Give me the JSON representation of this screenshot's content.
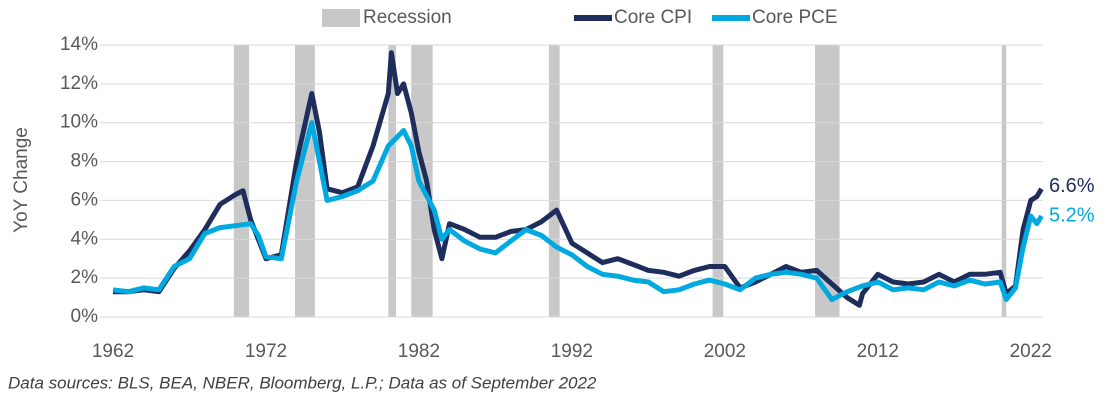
{
  "chart_data": {
    "type": "line",
    "y_label": "YoY Change",
    "footnote": "Data sources: BLS, BEA, NBER, Bloomberg, L.P.; Data as of September 2022",
    "xlim": [
      1962,
      2022.8
    ],
    "xticks": [
      1962,
      1972,
      1982,
      1992,
      2002,
      2012,
      2022
    ],
    "ylim": [
      0,
      14
    ],
    "yticks": [
      {
        "value": 0,
        "label": "0%"
      },
      {
        "value": 2,
        "label": "2%"
      },
      {
        "value": 4,
        "label": "4%"
      },
      {
        "value": 6,
        "label": "6%"
      },
      {
        "value": 8,
        "label": "8%"
      },
      {
        "value": 10,
        "label": "10%"
      },
      {
        "value": 12,
        "label": "12%"
      },
      {
        "value": 14,
        "label": "14%"
      }
    ],
    "grid": true,
    "recessions": {
      "name": "Recession",
      "color": "#c8c8c8",
      "periods": [
        [
          1969.9,
          1970.9
        ],
        [
          1973.9,
          1975.2
        ],
        [
          1980.0,
          1980.5
        ],
        [
          1981.5,
          1982.9
        ],
        [
          1990.5,
          1991.2
        ],
        [
          2001.2,
          2001.9
        ],
        [
          2007.9,
          2009.5
        ],
        [
          2020.1,
          2020.4
        ]
      ]
    },
    "series": [
      {
        "name": "Core CPI",
        "color": "#1f2d5c",
        "end_label": "6.6%",
        "x": [
          1962,
          1963,
          1964,
          1965,
          1966,
          1967,
          1968,
          1969,
          1970,
          1970.5,
          1971,
          1972,
          1973,
          1974,
          1975,
          1975.5,
          1976,
          1977,
          1978,
          1979,
          1980,
          1980.2,
          1980.6,
          1981,
          1981.5,
          1982,
          1982.5,
          1983,
          1983.5,
          1984,
          1985,
          1986,
          1987,
          1988,
          1989,
          1990,
          1991,
          1992,
          1993,
          1994,
          1995,
          1996,
          1997,
          1998,
          1999,
          2000,
          2001,
          2002,
          2003,
          2004,
          2005,
          2006,
          2007,
          2008,
          2009,
          2010,
          2010.8,
          2011,
          2012,
          2013,
          2014,
          2015,
          2016,
          2017,
          2018,
          2019,
          2020,
          2020.4,
          2021,
          2021.5,
          2022,
          2022.4,
          2022.7
        ],
        "values": [
          1.3,
          1.3,
          1.4,
          1.3,
          2.5,
          3.4,
          4.5,
          5.8,
          6.3,
          6.5,
          5.0,
          3.0,
          3.2,
          8.0,
          11.5,
          9.5,
          6.6,
          6.4,
          6.7,
          8.8,
          11.5,
          13.6,
          11.5,
          12.0,
          10.5,
          8.5,
          7.0,
          4.5,
          3.0,
          4.8,
          4.5,
          4.1,
          4.1,
          4.4,
          4.5,
          4.9,
          5.5,
          3.8,
          3.3,
          2.8,
          3.0,
          2.7,
          2.4,
          2.3,
          2.1,
          2.4,
          2.6,
          2.6,
          1.5,
          1.8,
          2.2,
          2.6,
          2.3,
          2.4,
          1.7,
          1.0,
          0.6,
          1.2,
          2.2,
          1.8,
          1.7,
          1.8,
          2.2,
          1.8,
          2.2,
          2.2,
          2.3,
          1.2,
          1.6,
          4.5,
          6.0,
          6.2,
          6.6
        ]
      },
      {
        "name": "Core PCE",
        "color": "#00a9e0",
        "end_label": "5.2%",
        "x": [
          1962,
          1963,
          1964,
          1965,
          1966,
          1967,
          1968,
          1969,
          1970,
          1971,
          1971.5,
          1972,
          1973,
          1974,
          1975,
          1975.5,
          1976,
          1977,
          1978,
          1979,
          1980,
          1981,
          1981.5,
          1982,
          1983,
          1983.5,
          1984,
          1985,
          1986,
          1987,
          1988,
          1989,
          1990,
          1991,
          1992,
          1993,
          1994,
          1995,
          1996,
          1997,
          1998,
          1999,
          2000,
          2001,
          2002,
          2003,
          2004,
          2005,
          2006,
          2007,
          2008,
          2009,
          2010,
          2011,
          2012,
          2013,
          2014,
          2015,
          2016,
          2017,
          2018,
          2019,
          2020,
          2020.4,
          2021,
          2021.5,
          2022,
          2022.4,
          2022.7
        ],
        "values": [
          1.4,
          1.3,
          1.5,
          1.4,
          2.6,
          3.0,
          4.3,
          4.6,
          4.7,
          4.8,
          4.2,
          3.1,
          3.0,
          7.0,
          10.0,
          8.0,
          6.0,
          6.2,
          6.5,
          7.0,
          8.8,
          9.6,
          8.8,
          7.0,
          5.5,
          4.0,
          4.5,
          3.9,
          3.5,
          3.3,
          3.9,
          4.5,
          4.2,
          3.6,
          3.2,
          2.6,
          2.2,
          2.1,
          1.9,
          1.8,
          1.3,
          1.4,
          1.7,
          1.9,
          1.7,
          1.4,
          2.0,
          2.2,
          2.3,
          2.2,
          2.0,
          0.9,
          1.3,
          1.6,
          1.8,
          1.4,
          1.5,
          1.4,
          1.8,
          1.6,
          1.9,
          1.7,
          1.8,
          0.9,
          1.5,
          3.6,
          5.2,
          4.8,
          5.2
        ]
      }
    ]
  }
}
